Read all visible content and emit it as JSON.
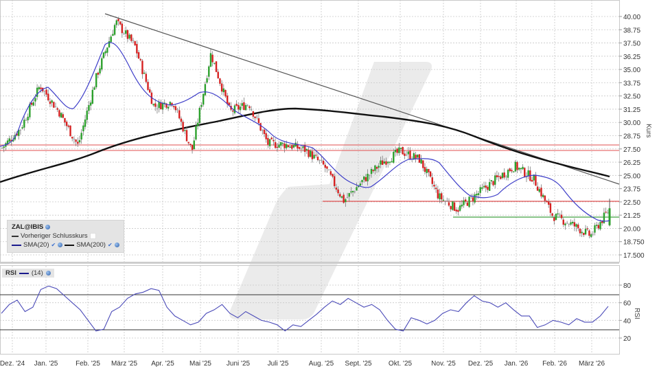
{
  "chart_data": [
    {
      "type": "candlestick",
      "title": "ZAL@IBIS",
      "ylabel": "Kurs",
      "ylim": [
        17.5,
        40.0
      ],
      "yticks": [
        "40.00",
        "38.75",
        "37.50",
        "36.25",
        "35.00",
        "33.75",
        "32.50",
        "31.25",
        "30.00",
        "28.75",
        "27.50",
        "26.25",
        "25.00",
        "23.75",
        "22.50",
        "21.25",
        "20.00",
        "18.750",
        "17.500"
      ],
      "grid": true,
      "legend": {
        "position": "bottom-left",
        "entries": [
          "Vorheriger Schlusskurs",
          "SMA(20)",
          "SMA(200)"
        ]
      },
      "approx_close_path": [
        {
          "x": "Dez. '24",
          "close": 27.6
        },
        {
          "x": "mid Dez. '24",
          "close": 29.5
        },
        {
          "x": "Jan. '25",
          "close": 33.5
        },
        {
          "x": "mid Jan. '25",
          "close": 31.0
        },
        {
          "x": "late Jan. '25",
          "close": 27.8
        },
        {
          "x": "Feb. '25",
          "close": 34.5
        },
        {
          "x": "mid Feb. '25",
          "close": 39.5
        },
        {
          "x": "März '25",
          "close": 37.2
        },
        {
          "x": "mid März '25",
          "close": 31.5
        },
        {
          "x": "Apr. '25",
          "close": 32.0
        },
        {
          "x": "early Apr. '25 low",
          "close": 27.3
        },
        {
          "x": "Mai '25",
          "close": 36.5
        },
        {
          "x": "mid Mai '25",
          "close": 31.0
        },
        {
          "x": "Juni '25",
          "close": 31.8
        },
        {
          "x": "mid Juni '25",
          "close": 28.0
        },
        {
          "x": "Juli '25",
          "close": 27.9
        },
        {
          "x": "mid Juli '25",
          "close": 27.4
        },
        {
          "x": "Aug. '25",
          "close": 25.8
        },
        {
          "x": "early Aug. '25 low",
          "close": 22.6
        },
        {
          "x": "Sept. '25",
          "close": 24.5
        },
        {
          "x": "mid Sept. '25",
          "close": 26.2
        },
        {
          "x": "Okt. '25",
          "close": 27.3
        },
        {
          "x": "mid Okt. '25",
          "close": 26.5
        },
        {
          "x": "Nov. '25",
          "close": 23.0
        },
        {
          "x": "mid Nov. '25",
          "close": 21.8
        },
        {
          "x": "Dez. '25",
          "close": 23.2
        },
        {
          "x": "mid Dez. '25",
          "close": 24.6
        },
        {
          "x": "Jan. '26",
          "close": 25.9
        },
        {
          "x": "mid Jan. '26",
          "close": 24.7
        },
        {
          "x": "Feb. '26",
          "close": 21.2
        },
        {
          "x": "mid Feb. '26",
          "close": 20.4
        },
        {
          "x": "März '26",
          "close": 19.3
        },
        {
          "x": "last",
          "close": 21.8
        }
      ],
      "series": [
        {
          "name": "SMA(20)",
          "color": "#3c3cc8",
          "approx_values": [
            27.7,
            30.5,
            33.5,
            31.0,
            31.5,
            37.5,
            33.0,
            30.5,
            32.2,
            30.5,
            28.5,
            27.5,
            26.5,
            24.2,
            25.8,
            26.8,
            26.5,
            23.8,
            23.2,
            24.5,
            25.5,
            24.3,
            21.7,
            20.3,
            20.5
          ]
        },
        {
          "name": "SMA(200)",
          "color": "#111111",
          "approx_values": [
            24.6,
            25.2,
            26.3,
            27.8,
            29.0,
            30.2,
            31.1,
            31.3,
            31.0,
            30.3,
            29.3,
            27.8,
            26.3,
            25.0
          ]
        }
      ],
      "annotations": [
        {
          "type": "trendline",
          "color": "#555555",
          "from": {
            "x": "mid Feb. '25",
            "y": 40.1
          },
          "to": {
            "x": "März '26",
            "y": 24.2
          }
        },
        {
          "type": "hline",
          "color": "#e05050",
          "y": 27.75,
          "label": "resistance"
        },
        {
          "type": "hline",
          "color": "#e05050",
          "y": 27.35,
          "label": "resistance"
        },
        {
          "type": "hline",
          "color": "#e05050",
          "y": 22.5,
          "from": "Aug. '25"
        },
        {
          "type": "hline",
          "color": "#40a040",
          "y": 21.1,
          "from": "Nov. '25"
        }
      ]
    },
    {
      "type": "line",
      "title": "RSI",
      "ylabel": "RSI",
      "ylim": [
        10,
        90
      ],
      "yticks": [
        "80",
        "60",
        "40",
        "20"
      ],
      "bands": [
        30,
        70
      ],
      "legend": {
        "entries": [
          "(14)"
        ]
      },
      "series": [
        {
          "name": "RSI (14)",
          "color": "#4a4ab8",
          "approx_values": [
            48,
            58,
            63,
            50,
            55,
            75,
            79,
            76,
            68,
            60,
            52,
            40,
            28,
            30,
            50,
            55,
            65,
            70,
            72,
            76,
            74,
            55,
            45,
            40,
            35,
            38,
            48,
            52,
            58,
            48,
            43,
            50,
            45,
            40,
            38,
            35,
            28,
            35,
            33,
            40,
            47,
            55,
            62,
            58,
            65,
            60,
            55,
            58,
            52,
            40,
            30,
            28,
            43,
            40,
            36,
            40,
            48,
            52,
            50,
            60,
            68,
            62,
            60,
            55,
            60,
            52,
            45,
            45,
            32,
            35,
            40,
            38,
            35,
            42,
            38,
            38,
            45,
            56
          ]
        }
      ]
    }
  ],
  "header": {
    "symbol_label": "ZAL@IBIS",
    "prev_close_label": "Vorheriger Schlusskurs",
    "sma20_label": "SMA(20)",
    "sma200_label": "SMA(200)",
    "check_glyph": "✔"
  },
  "rsi": {
    "title": "RSI",
    "period_label": "(14)"
  },
  "xaxis": {
    "labels": [
      "Dez. '24",
      "Jan. '25",
      "Feb. '25",
      "März '25",
      "Apr. '25",
      "Mai '25",
      "Juni '25",
      "Juli '25",
      "Aug. '25",
      "Sept. '25",
      "Okt. '25",
      "Nov. '25",
      "Dez. '25",
      "Jan. '26",
      "Feb. '26",
      "März '26"
    ],
    "positions": [
      18,
      67,
      128,
      181,
      237,
      292,
      347,
      405,
      468,
      522,
      583,
      646,
      700,
      752,
      808,
      862
    ]
  },
  "price_axis": {
    "title": "Kurs",
    "ticks": [
      "40.00",
      "38.75",
      "37.50",
      "36.25",
      "35.00",
      "33.75",
      "32.50",
      "31.25",
      "30.00",
      "28.75",
      "27.50",
      "26.25",
      "25.00",
      "23.75",
      "22.50",
      "21.25",
      "20.00",
      "18.750",
      "17.500"
    ]
  },
  "rsi_axis": {
    "title": "RSI",
    "ticks": [
      "80",
      "60",
      "40",
      "20"
    ]
  },
  "colors": {
    "up": "#2ca02c",
    "down": "#d62020",
    "neutral": "#999999",
    "sma20": "#3c3cc8",
    "sma200": "#111111",
    "trend": "#555555",
    "resistance": "#e05050",
    "support": "#40a040",
    "grid": "#c8c8c8",
    "watermark": "#e8e8e8"
  }
}
